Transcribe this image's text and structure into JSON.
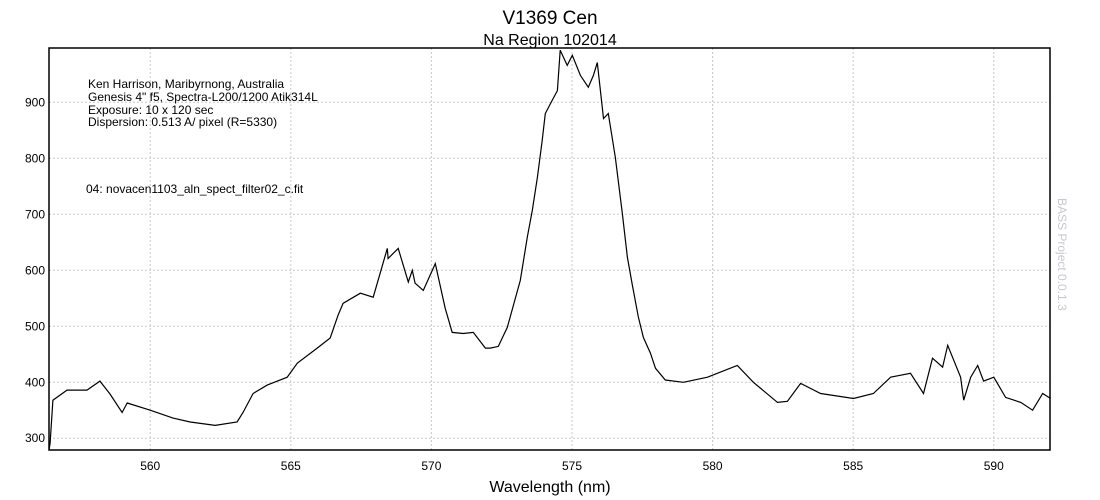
{
  "chart_data": {
    "type": "line",
    "title": "V1369 Cen",
    "subtitle": "Na Region 102014",
    "xlabel": "Wavelength (nm)",
    "ylabel": "",
    "xlim": [
      556.4,
      592.0
    ],
    "ylim": [
      279,
      997
    ],
    "xticks": [
      560,
      565,
      570,
      575,
      580,
      585,
      590
    ],
    "yticks": [
      300,
      400,
      500,
      600,
      700,
      800,
      900
    ],
    "grid": true,
    "line_color": "#000000",
    "grid_color": "#c8c8c8",
    "annotations": [
      "Ken Harrison, Maribyrnong, Australia",
      "Genesis 4\" f5, Spectra-L200/1200  Atik314L",
      "Exposure: 10 x 120 sec",
      "Dispersion: 0.513 A/ pixel (R=5330)"
    ],
    "file_label": "04: novacen1103_aln_spect_filter02_c.fit",
    "watermark": "BASS Project 0.0.1.3",
    "x": [
      556.44,
      556.54,
      557.04,
      557.75,
      558.21,
      558.57,
      559.0,
      559.18,
      560.0,
      560.81,
      561.42,
      562.31,
      563.09,
      563.3,
      563.66,
      564.16,
      564.87,
      565.23,
      565.94,
      566.4,
      566.68,
      566.86,
      567.47,
      567.93,
      568.18,
      568.43,
      568.46,
      568.82,
      569.18,
      569.32,
      569.42,
      569.71,
      570.14,
      570.49,
      570.74,
      571.13,
      571.49,
      571.92,
      572.09,
      572.38,
      572.7,
      573.16,
      573.41,
      573.59,
      573.77,
      573.94,
      574.05,
      574.3,
      574.48,
      574.58,
      574.83,
      575.01,
      575.3,
      575.58,
      575.76,
      575.9,
      576.12,
      576.29,
      576.54,
      576.79,
      576.97,
      577.15,
      577.36,
      577.54,
      577.79,
      577.97,
      578.32,
      578.96,
      579.82,
      580.88,
      581.45,
      582.31,
      582.66,
      583.13,
      583.84,
      585.01,
      585.72,
      586.33,
      587.04,
      587.5,
      587.82,
      588.18,
      588.36,
      588.82,
      588.93,
      589.18,
      589.43,
      589.64,
      590.0,
      590.42,
      590.96,
      591.38,
      591.74,
      592.02
    ],
    "y": [
      291,
      368,
      386,
      386,
      402,
      379,
      346,
      363,
      350,
      336,
      329,
      323,
      329,
      346,
      380,
      395,
      409,
      434,
      461,
      479,
      520,
      541,
      559,
      552,
      595,
      639,
      621,
      639,
      579,
      600,
      577,
      564,
      612,
      532,
      489,
      487,
      489,
      461,
      461,
      464,
      498,
      582,
      659,
      707,
      766,
      832,
      880,
      904,
      921,
      993,
      966,
      984,
      948,
      927,
      948,
      971,
      871,
      880,
      802,
      702,
      623,
      573,
      516,
      480,
      452,
      425,
      404,
      400,
      409,
      430,
      400,
      364,
      366,
      398,
      380,
      371,
      380,
      409,
      416,
      380,
      443,
      427,
      466,
      409,
      368,
      409,
      430,
      402,
      409,
      373,
      364,
      350,
      380,
      371
    ]
  }
}
